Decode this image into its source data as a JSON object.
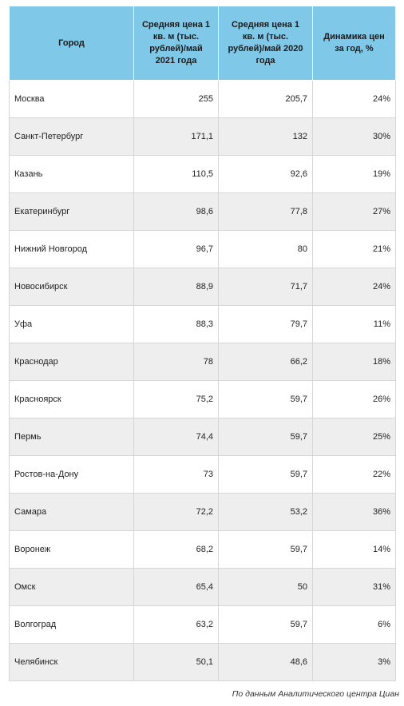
{
  "table": {
    "headers": [
      "Город",
      "Средняя цена 1 кв. м (тыс. рублей)/май 2021 года",
      "Средняя цена 1 кв. м (тыс. рублей)/май 2020 года",
      "Динамика цен за год, %"
    ],
    "rows": [
      [
        "Москва",
        "255",
        "205,7",
        "24%"
      ],
      [
        "Санкт-Петербург",
        "171,1",
        "132",
        "30%"
      ],
      [
        "Казань",
        "110,5",
        "92,6",
        "19%"
      ],
      [
        "Екатеринбург",
        "98,6",
        "77,8",
        "27%"
      ],
      [
        "Нижний Новгород",
        "96,7",
        "80",
        "21%"
      ],
      [
        "Новосибирск",
        "88,9",
        "71,7",
        "24%"
      ],
      [
        "Уфа",
        "88,3",
        "79,7",
        "11%"
      ],
      [
        "Краснодар",
        "78",
        "66,2",
        "18%"
      ],
      [
        "Красноярск",
        "75,2",
        "59,7",
        "26%"
      ],
      [
        "Пермь",
        "74,4",
        "59,7",
        "25%"
      ],
      [
        "Ростов-на-Дону",
        "73",
        "59,7",
        "22%"
      ],
      [
        "Самара",
        "72,2",
        "53,2",
        "36%"
      ],
      [
        "Воронеж",
        "68,2",
        "59,7",
        "14%"
      ],
      [
        "Омск",
        "65,4",
        "50",
        "31%"
      ],
      [
        "Волгоград",
        "63,2",
        "59,7",
        "6%"
      ],
      [
        "Челябинск",
        "50,1",
        "48,6",
        "3%"
      ]
    ]
  },
  "source_note": "По данным Аналитического центра Циан",
  "colors": {
    "header_bg": "#80c8e8",
    "row_alt_bg": "#eeeeee",
    "border": "#d6d6d6"
  }
}
